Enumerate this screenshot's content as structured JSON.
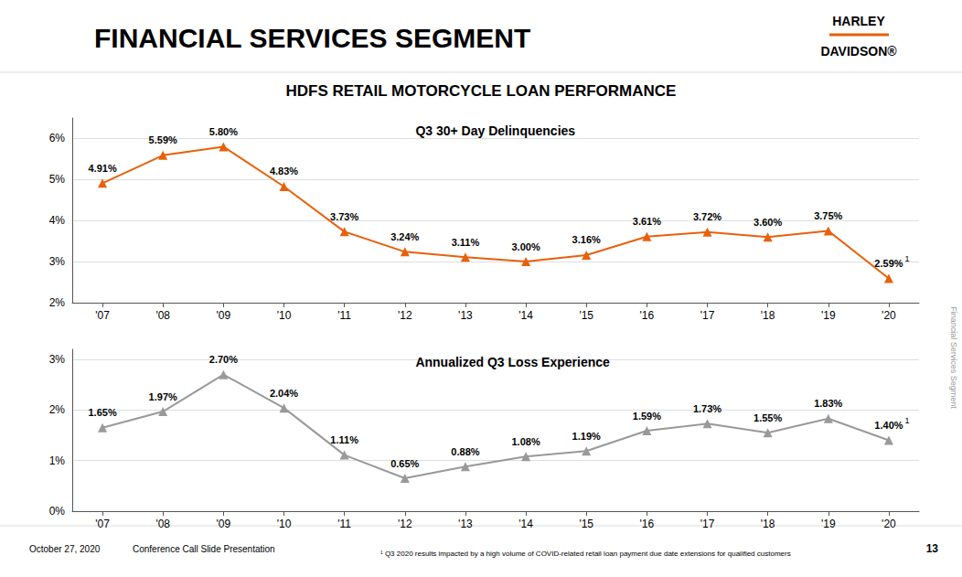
{
  "title": "HDFS RETAIL MOTORCYCLE LOAN PERFORMANCE",
  "annotations": [
    "FINANCIAL SERVICES SEGMENT",
    "HARLEY",
    "DAVIDSON®",
    "October 27, 2020",
    "Conference Call Slide Presentation",
    "¹ Q3 2020 results impacted by a high volume of COVID-related retail loan payment due date extensions for qualified customers",
    "13",
    "Financial Services Segment"
  ],
  "chart_data": [
    {
      "type": "line",
      "title": "Q3 30+ Day Delinquencies",
      "categories": [
        "'07",
        "'08",
        "'09",
        "'10",
        "'11",
        "'12",
        "'13",
        "'14",
        "'15",
        "'16",
        "'17",
        "'18",
        "'19",
        "'20"
      ],
      "values": [
        4.91,
        5.59,
        5.8,
        4.83,
        3.73,
        3.24,
        3.11,
        3.0,
        3.16,
        3.61,
        3.72,
        3.6,
        3.75,
        2.59
      ],
      "value_labels": [
        "4.91%",
        "5.59%",
        "5.80%",
        "4.83%",
        "3.73%",
        "3.24%",
        "3.11%",
        "3.00%",
        "3.16%",
        "3.61%",
        "3.72%",
        "3.60%",
        "3.75%",
        "2.59%"
      ],
      "color": "#E8600A",
      "marker": "triangle",
      "ylim": [
        2,
        6.5
      ],
      "yticks": [
        {
          "value": 2,
          "label": "2%"
        },
        {
          "value": 3,
          "label": "3%"
        },
        {
          "value": 4,
          "label": "4%"
        },
        {
          "value": 5,
          "label": "5%"
        },
        {
          "value": 6,
          "label": "6%"
        }
      ],
      "grid": true,
      "data_labels": true,
      "annotations": [
        {
          "text": "1",
          "x": "'20",
          "y": 2.59
        }
      ]
    },
    {
      "type": "line",
      "title": "Annualized Q3 Loss Experience",
      "categories": [
        "'07",
        "'08",
        "'09",
        "'10",
        "'11",
        "'12",
        "'13",
        "'14",
        "'15",
        "'16",
        "'17",
        "'18",
        "'19",
        "'20"
      ],
      "values": [
        1.65,
        1.97,
        2.7,
        2.04,
        1.11,
        0.65,
        0.88,
        1.08,
        1.19,
        1.59,
        1.73,
        1.55,
        1.83,
        1.4
      ],
      "value_labels": [
        "1.65%",
        "1.97%",
        "2.70%",
        "2.04%",
        "1.11%",
        "0.65%",
        "0.88%",
        "1.08%",
        "1.19%",
        "1.59%",
        "1.73%",
        "1.55%",
        "1.83%",
        "1.40%"
      ],
      "color": "#999999",
      "marker": "triangle",
      "ylim": [
        0,
        3.2
      ],
      "yticks": [
        {
          "value": 0,
          "label": "0%"
        },
        {
          "value": 1,
          "label": "1%"
        },
        {
          "value": 2,
          "label": "2%"
        },
        {
          "value": 3,
          "label": "3%"
        }
      ],
      "grid": true,
      "data_labels": true,
      "annotations": [
        {
          "text": "1",
          "x": "'20",
          "y": 1.4
        }
      ]
    }
  ]
}
